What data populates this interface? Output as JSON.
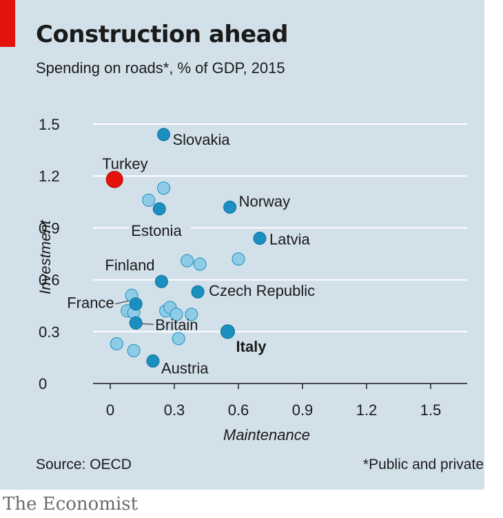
{
  "header": {
    "title": "Construction ahead",
    "subtitle": "Spending on roads*, % of GDP, 2015"
  },
  "footer": {
    "source": "Source: OECD",
    "footnote": "*Public and private",
    "brand": "The Economist"
  },
  "colors": {
    "highlight": "#e3120b",
    "labeled": "#1a8fc0",
    "unlabeled": "#8fcbe6",
    "background": "#d2e0ea"
  },
  "chart_data": {
    "type": "scatter",
    "title": "Construction ahead",
    "subtitle": "Spending on roads*, % of GDP, 2015",
    "xlabel": "Maintenance",
    "ylabel": "Investment",
    "xlim": [
      -0.1,
      1.65
    ],
    "ylim": [
      0,
      1.5
    ],
    "xticks": [
      0,
      0.3,
      0.6,
      0.9,
      1.2,
      1.5
    ],
    "xtick_labels": [
      "0",
      "0.3",
      "0.6",
      "0.9",
      "1.2",
      "1.5"
    ],
    "yticks": [
      0,
      0.3,
      0.6,
      0.9,
      1.2,
      1.5
    ],
    "ytick_labels": [
      "0",
      "0.3",
      "0.6",
      "0.9",
      "1.2",
      "1.5"
    ],
    "grid": "horizontal",
    "labeled_points": [
      {
        "name": "Slovakia",
        "x": 0.25,
        "y": 1.44,
        "kind": "labeled"
      },
      {
        "name": "Turkey",
        "x": 0.02,
        "y": 1.18,
        "kind": "highlight"
      },
      {
        "name": "Norway",
        "x": 0.56,
        "y": 1.02,
        "kind": "labeled"
      },
      {
        "name": "Estonia",
        "x": 0.23,
        "y": 1.01,
        "kind": "labeled"
      },
      {
        "name": "Latvia",
        "x": 0.7,
        "y": 0.84,
        "kind": "labeled"
      },
      {
        "name": "Finland",
        "x": 0.24,
        "y": 0.59,
        "kind": "labeled"
      },
      {
        "name": "Czech Republic",
        "x": 0.41,
        "y": 0.53,
        "kind": "labeled"
      },
      {
        "name": "France",
        "x": 0.12,
        "y": 0.46,
        "kind": "labeled"
      },
      {
        "name": "Britain",
        "x": 0.12,
        "y": 0.35,
        "kind": "labeled"
      },
      {
        "name": "Italy",
        "x": 0.55,
        "y": 0.3,
        "kind": "emphasis"
      },
      {
        "name": "Austria",
        "x": 0.2,
        "y": 0.13,
        "kind": "labeled"
      }
    ],
    "other_points": [
      {
        "x": 0.25,
        "y": 1.13
      },
      {
        "x": 0.18,
        "y": 1.06
      },
      {
        "x": 0.36,
        "y": 0.71
      },
      {
        "x": 0.42,
        "y": 0.69
      },
      {
        "x": 0.6,
        "y": 0.72
      },
      {
        "x": 0.1,
        "y": 0.51
      },
      {
        "x": 0.08,
        "y": 0.42
      },
      {
        "x": 0.11,
        "y": 0.41
      },
      {
        "x": 0.26,
        "y": 0.42
      },
      {
        "x": 0.28,
        "y": 0.44
      },
      {
        "x": 0.31,
        "y": 0.4
      },
      {
        "x": 0.38,
        "y": 0.4
      },
      {
        "x": 0.32,
        "y": 0.26
      },
      {
        "x": 0.03,
        "y": 0.23
      },
      {
        "x": 0.11,
        "y": 0.19
      }
    ]
  }
}
